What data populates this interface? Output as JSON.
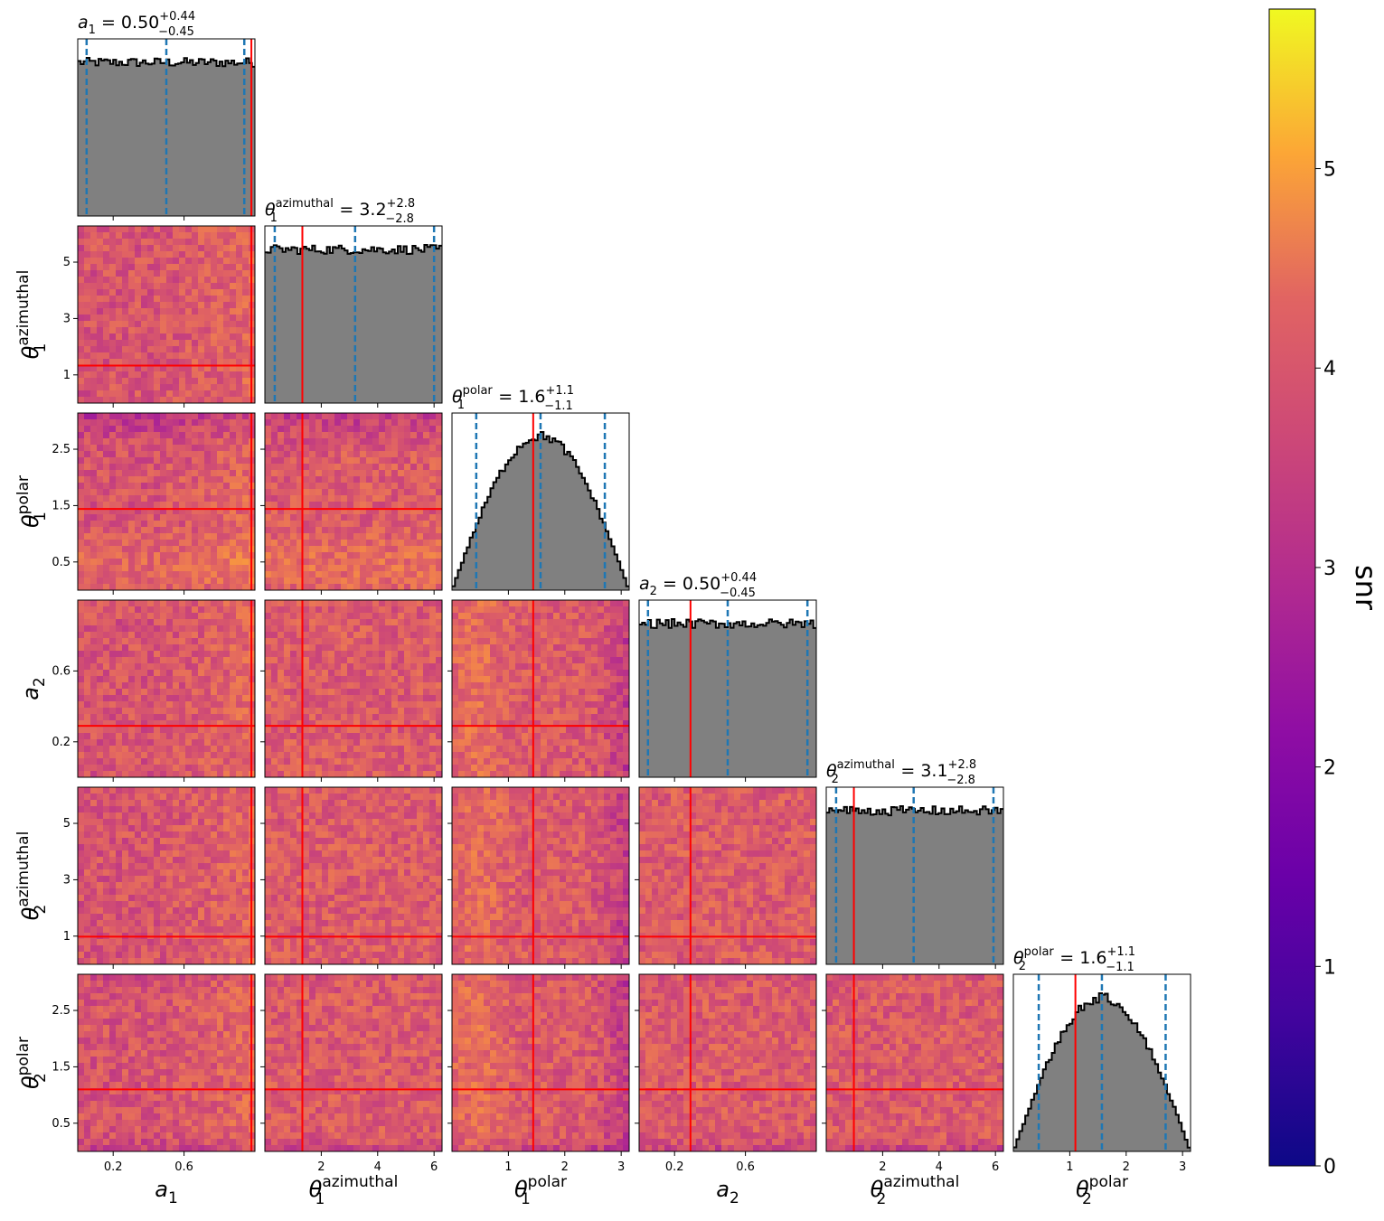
{
  "chart_data": {
    "type": "corner",
    "parameters": [
      {
        "key": "a1",
        "sym": "a",
        "sub": "1",
        "sup": "",
        "range": [
          0,
          1
        ],
        "ticks": [
          0.2,
          0.6
        ],
        "tick_labels": [
          "0.2",
          "0.6"
        ],
        "truth": 0.98,
        "quantiles": [
          0.05,
          0.5,
          0.94
        ],
        "title": {
          "value": "0.50",
          "plus": "+0.44",
          "minus": "−0.45"
        }
      },
      {
        "key": "theta1_az",
        "sym": "θ",
        "sub": "1",
        "sup": "azimuthal",
        "range": [
          0,
          6.283
        ],
        "ticks": [
          2,
          4,
          6
        ],
        "tick_labels": [
          "2",
          "4",
          "6"
        ],
        "truth": 1.33,
        "quantiles": [
          0.35,
          3.2,
          6.0
        ],
        "title": {
          "value": "3.2",
          "plus": "+2.8",
          "minus": "−2.8"
        }
      },
      {
        "key": "theta1_pol",
        "sym": "θ",
        "sub": "1",
        "sup": "polar",
        "range": [
          0,
          3.1416
        ],
        "ticks": [
          1,
          2,
          3
        ],
        "tick_labels": [
          "1",
          "2",
          "3"
        ],
        "truth": 1.44,
        "quantiles": [
          0.43,
          1.57,
          2.71
        ],
        "title": {
          "value": "1.6",
          "plus": "+1.1",
          "minus": "−1.1"
        }
      },
      {
        "key": "a2",
        "sym": "a",
        "sub": "2",
        "sup": "",
        "range": [
          0,
          1
        ],
        "ticks": [
          0.2,
          0.6
        ],
        "tick_labels": [
          "0.2",
          "0.6"
        ],
        "truth": 0.29,
        "quantiles": [
          0.05,
          0.5,
          0.95
        ],
        "title": {
          "value": "0.50",
          "plus": "+0.44",
          "minus": "−0.45"
        }
      },
      {
        "key": "theta2_az",
        "sym": "θ",
        "sub": "2",
        "sup": "azimuthal",
        "range": [
          0,
          6.283
        ],
        "ticks": [
          2,
          4,
          6
        ],
        "tick_labels": [
          "2",
          "4",
          "6"
        ],
        "truth": 0.98,
        "quantiles": [
          0.35,
          3.1,
          5.93
        ],
        "title": {
          "value": "3.1",
          "plus": "+2.8",
          "minus": "−2.8"
        }
      },
      {
        "key": "theta2_pol",
        "sym": "θ",
        "sub": "2",
        "sup": "polar",
        "range": [
          0,
          3.1416
        ],
        "ticks": [
          1,
          2,
          3
        ],
        "tick_labels": [
          "1",
          "2",
          "3"
        ],
        "truth": 1.1,
        "quantiles": [
          0.45,
          1.57,
          2.7
        ],
        "title": {
          "value": "1.6",
          "plus": "+1.1",
          "minus": "−1.1"
        }
      }
    ],
    "row_ticks": {
      "a": {
        "ticks": [
          0.2,
          0.6
        ],
        "labels": [
          "0.2",
          "0.6"
        ]
      },
      "az": {
        "ticks": [
          1,
          3,
          5
        ],
        "labels": [
          "1",
          "3",
          "5"
        ]
      },
      "pol": {
        "ticks": [
          0.5,
          1.5,
          2.5
        ],
        "labels": [
          "0.5",
          "1.5",
          "2.5"
        ]
      }
    },
    "colorbar": {
      "label": "snr",
      "colormap": "plasma",
      "range": [
        0,
        5.8
      ],
      "ticks": [
        0,
        1,
        2,
        3,
        4,
        5
      ],
      "tick_labels": [
        "0",
        "1",
        "2",
        "3",
        "4",
        "5"
      ]
    },
    "colors": {
      "hist_fill": "#808080",
      "hist_edge": "#000000",
      "truth_line": "#ff0000",
      "quantile_line": "#1f77b4"
    }
  }
}
